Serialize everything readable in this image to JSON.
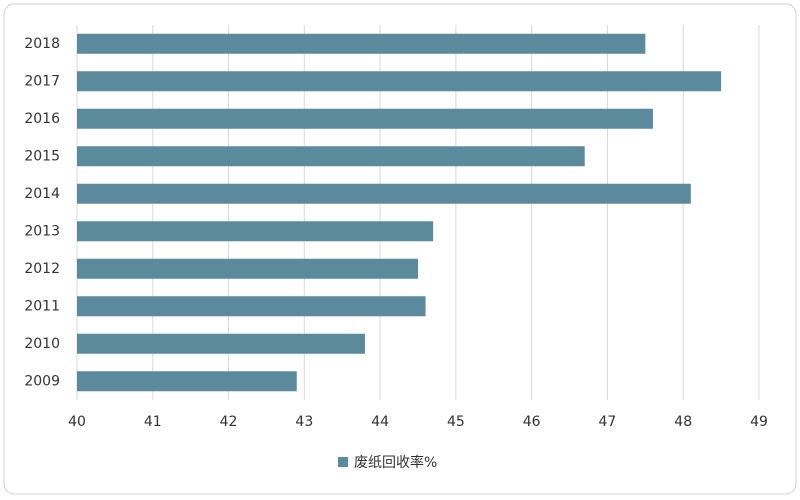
{
  "chart_data": {
    "type": "bar",
    "orientation": "horizontal",
    "categories": [
      "2018",
      "2017",
      "2016",
      "2015",
      "2014",
      "2013",
      "2012",
      "2011",
      "2010",
      "2009"
    ],
    "series": [
      {
        "name": "废纸回收率%",
        "color": "#5a8a9c",
        "values": [
          47.5,
          48.5,
          47.6,
          46.7,
          48.1,
          44.7,
          44.5,
          44.6,
          43.8,
          42.9
        ]
      }
    ],
    "xlim": [
      40,
      49
    ],
    "xticks": [
      40,
      41,
      42,
      43,
      44,
      45,
      46,
      47,
      48,
      49
    ],
    "grid": true,
    "legend": "bottom"
  }
}
